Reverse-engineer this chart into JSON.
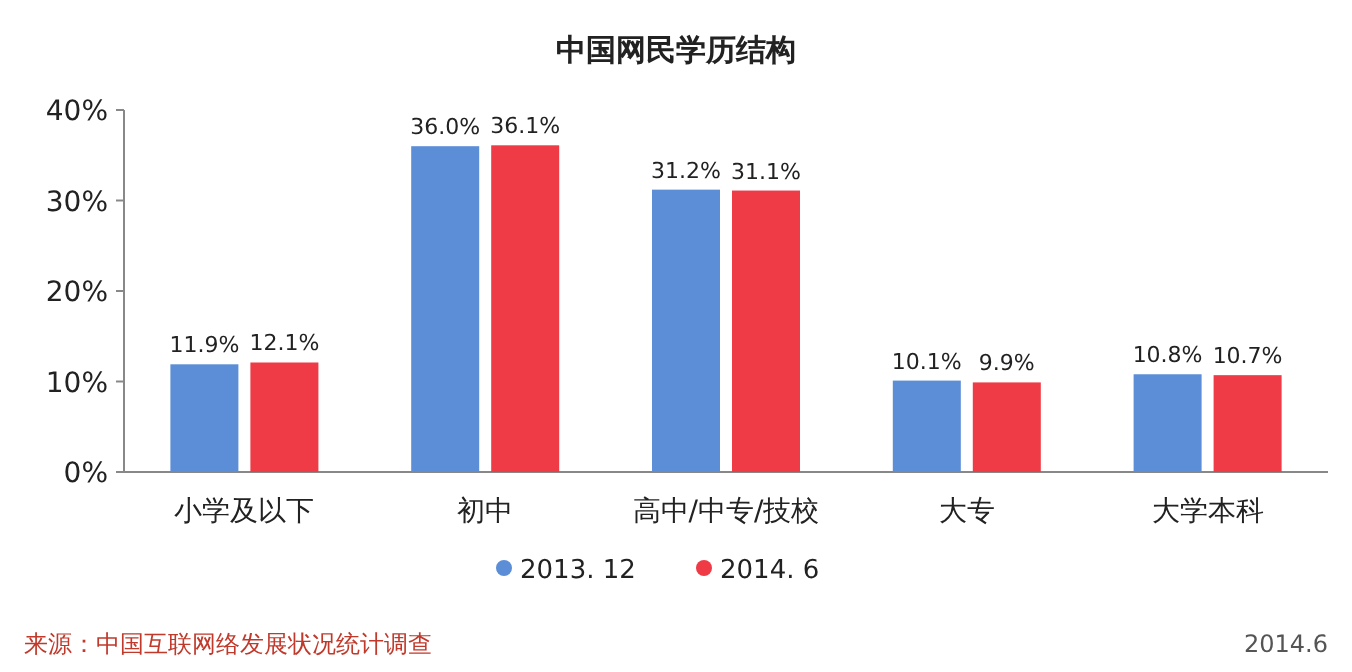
{
  "chart_data": {
    "type": "bar",
    "title": "中国网民学历结构",
    "categories": [
      "小学及以下",
      "初中",
      "高中/中专/技校",
      "大专",
      "大学本科"
    ],
    "series": [
      {
        "name": "2013. 12",
        "color": "#5b8ed6",
        "values": [
          11.9,
          36.0,
          31.2,
          10.1,
          10.8
        ],
        "value_labels": [
          "11.9%",
          "36.0%",
          "31.2%",
          "10.1%",
          "10.8%"
        ]
      },
      {
        "name": "2014. 6",
        "color": "#ee3b45",
        "values": [
          12.1,
          36.1,
          31.1,
          9.9,
          10.7
        ],
        "value_labels": [
          "12.1%",
          "36.1%",
          "31.1%",
          "9.9%",
          "10.7%"
        ]
      }
    ],
    "ylim": [
      0,
      40
    ],
    "yticks": [
      {
        "value": 0,
        "label": "0%"
      },
      {
        "value": 10,
        "label": "10%"
      },
      {
        "value": 20,
        "label": "20%"
      },
      {
        "value": 30,
        "label": "30%"
      },
      {
        "value": 40,
        "label": "40%"
      }
    ],
    "grid": false,
    "legend": "bottom",
    "annotations": [
      "来源：中国互联网络发展状况统计调查",
      "2014.6"
    ]
  }
}
